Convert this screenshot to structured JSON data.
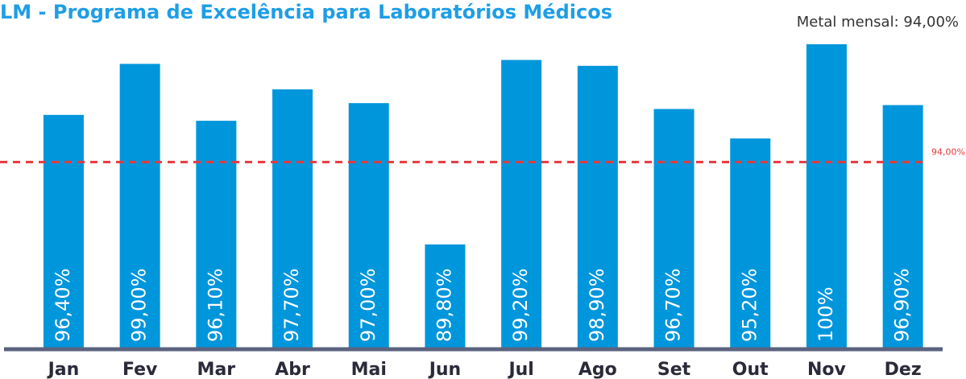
{
  "chart_data": {
    "type": "bar",
    "title": "LM - Programa de Excelência para Laboratórios Médicos",
    "subtitle": "Metal mensal: 94,00%",
    "categories": [
      "Jan",
      "Fev",
      "Mar",
      "Abr",
      "Mai",
      "Jun",
      "Jul",
      "Ago",
      "Set",
      "Out",
      "Nov",
      "Dez"
    ],
    "values": [
      96.4,
      99,
      96.1,
      97.7,
      97,
      89.8,
      99.2,
      98.9,
      96.7,
      95.2,
      100,
      96.9
    ],
    "value_labels": [
      "96,40%",
      "99,00%",
      "96,10%",
      "97,70%",
      "97,00%",
      "89,80%",
      "99,20%",
      "98,90%",
      "96,70%",
      "95,20%",
      "100%",
      "96,90%"
    ],
    "color": "#0096dc",
    "ylim": [
      84.5,
      100
    ],
    "target": 94,
    "target_label": "94,00%",
    "target_color": "#e8383d"
  }
}
